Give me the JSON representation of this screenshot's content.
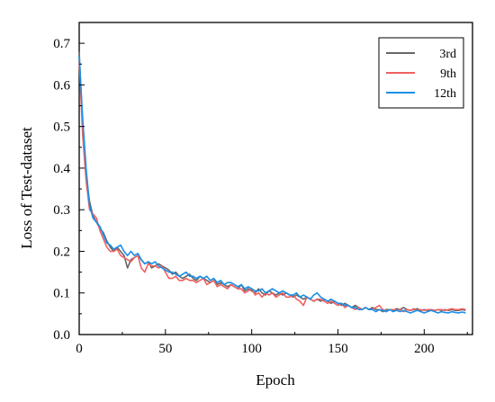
{
  "chart_data": {
    "type": "line",
    "xlabel": "Epoch",
    "ylabel": "Loss of Test-dataset",
    "xlim": [
      0,
      228
    ],
    "ylim": [
      0.0,
      0.75
    ],
    "xticks": [
      0,
      50,
      100,
      150,
      200
    ],
    "yticks": [
      0.0,
      0.1,
      0.2,
      0.3,
      0.4,
      0.5,
      0.6,
      0.7
    ],
    "ytick_labels": [
      "0.0",
      "0.1",
      "0.2",
      "0.3",
      "0.4",
      "0.5",
      "0.6",
      "0.7"
    ],
    "grid": false,
    "legend_position": "top-right",
    "x": [
      0,
      2,
      4,
      6,
      8,
      10,
      12,
      14,
      16,
      18,
      20,
      22,
      24,
      26,
      28,
      30,
      32,
      34,
      36,
      38,
      40,
      42,
      44,
      46,
      48,
      50,
      52,
      54,
      56,
      58,
      60,
      62,
      64,
      66,
      68,
      70,
      72,
      74,
      76,
      78,
      80,
      82,
      84,
      86,
      88,
      90,
      92,
      94,
      96,
      98,
      100,
      102,
      104,
      106,
      108,
      110,
      112,
      114,
      116,
      118,
      120,
      122,
      124,
      126,
      128,
      130,
      132,
      134,
      136,
      138,
      140,
      142,
      144,
      146,
      148,
      150,
      152,
      154,
      156,
      158,
      160,
      162,
      164,
      166,
      168,
      170,
      172,
      174,
      176,
      178,
      180,
      182,
      184,
      186,
      188,
      190,
      192,
      194,
      196,
      198,
      200,
      202,
      204,
      206,
      208,
      210,
      212,
      214,
      216,
      218,
      220,
      222,
      224
    ],
    "series": [
      {
        "name": "3rd",
        "color": "#666666",
        "values": [
          0.68,
          0.5,
          0.38,
          0.32,
          0.285,
          0.27,
          0.255,
          0.245,
          0.225,
          0.21,
          0.2,
          0.21,
          0.2,
          0.19,
          0.16,
          0.18,
          0.185,
          0.19,
          0.18,
          0.17,
          0.175,
          0.16,
          0.165,
          0.17,
          0.165,
          0.16,
          0.155,
          0.145,
          0.15,
          0.14,
          0.135,
          0.14,
          0.145,
          0.135,
          0.13,
          0.14,
          0.135,
          0.13,
          0.125,
          0.13,
          0.12,
          0.125,
          0.12,
          0.115,
          0.12,
          0.115,
          0.11,
          0.12,
          0.105,
          0.11,
          0.105,
          0.1,
          0.11,
          0.1,
          0.095,
          0.105,
          0.1,
          0.095,
          0.1,
          0.095,
          0.1,
          0.095,
          0.09,
          0.095,
          0.09,
          0.085,
          0.09,
          0.085,
          0.08,
          0.085,
          0.08,
          0.085,
          0.08,
          0.075,
          0.08,
          0.075,
          0.07,
          0.075,
          0.07,
          0.065,
          0.07,
          0.065,
          0.06,
          0.065,
          0.06,
          0.065,
          0.06,
          0.06,
          0.055,
          0.06,
          0.06,
          0.058,
          0.062,
          0.06,
          0.065,
          0.06,
          0.058,
          0.06,
          0.062,
          0.058,
          0.06,
          0.058,
          0.06,
          0.058,
          0.06,
          0.058,
          0.06,
          0.058,
          0.06,
          0.058,
          0.058,
          0.06,
          0.058
        ]
      },
      {
        "name": "9th",
        "color": "#f06060",
        "values": [
          0.66,
          0.48,
          0.37,
          0.3,
          0.29,
          0.28,
          0.25,
          0.23,
          0.21,
          0.2,
          0.2,
          0.205,
          0.19,
          0.185,
          0.18,
          0.175,
          0.185,
          0.19,
          0.16,
          0.15,
          0.17,
          0.165,
          0.165,
          0.16,
          0.165,
          0.15,
          0.135,
          0.135,
          0.14,
          0.13,
          0.13,
          0.135,
          0.13,
          0.13,
          0.125,
          0.13,
          0.135,
          0.12,
          0.125,
          0.13,
          0.115,
          0.12,
          0.115,
          0.11,
          0.12,
          0.115,
          0.11,
          0.11,
          0.1,
          0.105,
          0.11,
          0.095,
          0.1,
          0.09,
          0.1,
          0.095,
          0.1,
          0.09,
          0.095,
          0.1,
          0.09,
          0.09,
          0.095,
          0.085,
          0.08,
          0.07,
          0.09,
          0.085,
          0.08,
          0.085,
          0.085,
          0.08,
          0.075,
          0.08,
          0.075,
          0.07,
          0.075,
          0.065,
          0.07,
          0.065,
          0.06,
          0.065,
          0.06,
          0.065,
          0.06,
          0.06,
          0.065,
          0.07,
          0.06,
          0.055,
          0.06,
          0.06,
          0.058,
          0.06,
          0.055,
          0.06,
          0.058,
          0.062,
          0.058,
          0.06,
          0.058,
          0.06,
          0.06,
          0.058,
          0.06,
          0.06,
          0.058,
          0.06,
          0.062,
          0.06,
          0.06,
          0.062,
          0.06
        ]
      },
      {
        "name": "12th",
        "color": "#1a8fe8",
        "values": [
          0.67,
          0.52,
          0.4,
          0.31,
          0.28,
          0.27,
          0.26,
          0.24,
          0.22,
          0.215,
          0.205,
          0.21,
          0.215,
          0.2,
          0.19,
          0.2,
          0.19,
          0.195,
          0.18,
          0.17,
          0.175,
          0.17,
          0.175,
          0.165,
          0.16,
          0.155,
          0.15,
          0.15,
          0.145,
          0.14,
          0.145,
          0.15,
          0.14,
          0.14,
          0.135,
          0.14,
          0.135,
          0.14,
          0.13,
          0.135,
          0.125,
          0.13,
          0.12,
          0.125,
          0.125,
          0.12,
          0.115,
          0.12,
          0.11,
          0.115,
          0.11,
          0.105,
          0.105,
          0.11,
          0.1,
          0.105,
          0.11,
          0.105,
          0.1,
          0.105,
          0.1,
          0.095,
          0.095,
          0.1,
          0.09,
          0.095,
          0.09,
          0.085,
          0.095,
          0.1,
          0.09,
          0.085,
          0.08,
          0.085,
          0.08,
          0.075,
          0.075,
          0.07,
          0.07,
          0.065,
          0.065,
          0.06,
          0.06,
          0.065,
          0.06,
          0.06,
          0.055,
          0.06,
          0.058,
          0.055,
          0.06,
          0.055,
          0.058,
          0.055,
          0.058,
          0.055,
          0.052,
          0.055,
          0.058,
          0.055,
          0.052,
          0.055,
          0.058,
          0.055,
          0.052,
          0.055,
          0.053,
          0.052,
          0.055,
          0.053,
          0.052,
          0.054,
          0.052
        ]
      }
    ]
  }
}
